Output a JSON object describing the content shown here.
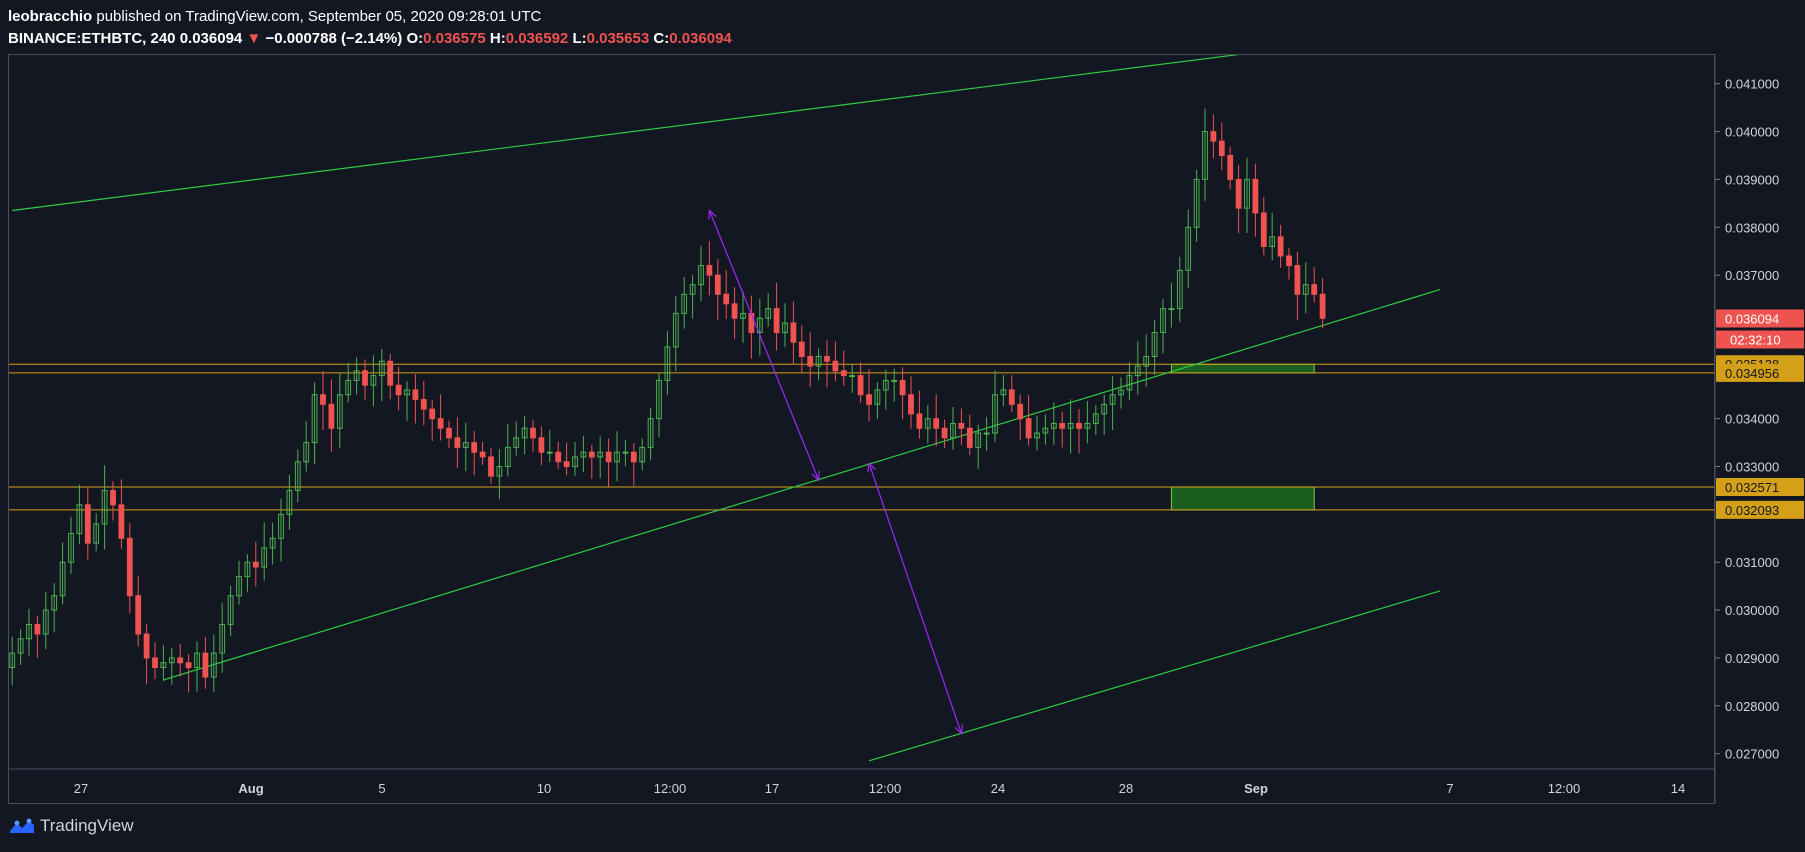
{
  "header": {
    "author": "leobracchio",
    "published_text": "published on TradingView.com, September 05, 2020 09:28:01 UTC",
    "symbol": "BINANCE:ETHBTC, 240",
    "last": "0.036094",
    "change_arrow": "▼",
    "change": "−0.000788 (−2.14%)",
    "o_label": "O:",
    "o_value": "0.036575",
    "h_label": "H:",
    "h_value": "0.036592",
    "l_label": "L:",
    "l_value": "0.035653",
    "c_label": "C:",
    "c_value": "0.036094"
  },
  "footer": {
    "brand": "TradingView",
    "logo_icon": "tradingview-logo-icon"
  },
  "colors": {
    "background": "#131722",
    "up": "#4caf50",
    "down": "#ef5350",
    "trendline": "#2ecc40",
    "support_line": "#d4a017",
    "measure_arrow": "#9c27ff",
    "zone_fill": "#1b5e20"
  },
  "chart_data": {
    "type": "candlestick",
    "symbol": "BINANCE:ETHBTC",
    "interval": "240",
    "ylim": [
      0.0267,
      0.0416
    ],
    "y_ticks": [
      "0.041000",
      "0.040000",
      "0.039000",
      "0.038000",
      "0.037000",
      "0.034000",
      "0.033000",
      "0.031000",
      "0.030000",
      "0.029000",
      "0.028000",
      "0.027000"
    ],
    "x_ticks": [
      "27",
      "Aug",
      "5",
      "10",
      "12:00",
      "17",
      "12:00",
      "24",
      "28",
      "Sep",
      "7",
      "12:00",
      "14"
    ],
    "price_labels": [
      {
        "value": "0.036094",
        "kind": "last"
      },
      {
        "value": "02:32:10",
        "kind": "countdown"
      },
      {
        "value": "0.035138",
        "kind": "level"
      },
      {
        "value": "0.034956",
        "kind": "level"
      },
      {
        "value": "0.032571",
        "kind": "level"
      },
      {
        "value": "0.032093",
        "kind": "level"
      }
    ],
    "horizontal_levels": [
      0.035138,
      0.034956,
      0.032571,
      0.032093
    ],
    "channel_lines": [
      {
        "name": "upper",
        "points": [
          [
            0,
            0.03835
          ],
          [
            150,
            0.0417
          ]
        ]
      },
      {
        "name": "middle",
        "points": [
          [
            18,
            0.02854
          ],
          [
            170,
            0.0367
          ]
        ]
      },
      {
        "name": "lower",
        "points": [
          [
            102,
            0.02685
          ],
          [
            170,
            0.0304
          ]
        ]
      }
    ],
    "zones": [
      {
        "x": [
          138,
          155
        ],
        "y": [
          0.034956,
          0.035138
        ]
      },
      {
        "x": [
          138,
          155
        ],
        "y": [
          0.032093,
          0.032571
        ]
      }
    ],
    "measure_arrows": [
      {
        "from": [
          83,
          0.03835
        ],
        "to": [
          96,
          0.03272
        ]
      },
      {
        "from": [
          102,
          0.03307
        ],
        "to": [
          113,
          0.02742
        ]
      }
    ],
    "closes": [
      0.0291,
      0.0294,
      0.0297,
      0.0295,
      0.03,
      0.0303,
      0.031,
      0.0316,
      0.0322,
      0.0314,
      0.0318,
      0.0325,
      0.0322,
      0.0315,
      0.0303,
      0.0295,
      0.029,
      0.0288,
      0.0289,
      0.029,
      0.0289,
      0.0288,
      0.0291,
      0.0286,
      0.0291,
      0.0297,
      0.0303,
      0.0307,
      0.031,
      0.0309,
      0.0313,
      0.0315,
      0.032,
      0.0325,
      0.0331,
      0.0335,
      0.0345,
      0.0343,
      0.0338,
      0.0345,
      0.0348,
      0.035,
      0.0347,
      0.0349,
      0.0352,
      0.0347,
      0.0345,
      0.0346,
      0.0344,
      0.0342,
      0.034,
      0.0338,
      0.0336,
      0.0334,
      0.0335,
      0.0333,
      0.0332,
      0.0328,
      0.033,
      0.0334,
      0.0336,
      0.0338,
      0.0336,
      0.0333,
      0.0333,
      0.0331,
      0.033,
      0.0332,
      0.0333,
      0.0332,
      0.0333,
      0.0331,
      0.0333,
      0.0333,
      0.0331,
      0.0334,
      0.034,
      0.0348,
      0.0355,
      0.0362,
      0.0366,
      0.0368,
      0.0372,
      0.037,
      0.0366,
      0.0364,
      0.0361,
      0.0362,
      0.0358,
      0.0361,
      0.0363,
      0.0358,
      0.036,
      0.0356,
      0.0353,
      0.0351,
      0.0353,
      0.0352,
      0.035,
      0.0349,
      0.0349,
      0.0345,
      0.0343,
      0.0346,
      0.0348,
      0.0348,
      0.0345,
      0.0341,
      0.0338,
      0.034,
      0.0338,
      0.0336,
      0.0339,
      0.0338,
      0.0334,
      0.0337,
      0.0337,
      0.0345,
      0.0346,
      0.0343,
      0.034,
      0.0336,
      0.0337,
      0.0338,
      0.0339,
      0.0338,
      0.0339,
      0.0338,
      0.0339,
      0.0341,
      0.0343,
      0.0345,
      0.0346,
      0.0349,
      0.0351,
      0.0353,
      0.0358,
      0.0363,
      0.0363,
      0.0371,
      0.038,
      0.039,
      0.04,
      0.0398,
      0.0395,
      0.039,
      0.0384,
      0.039,
      0.0383,
      0.0376,
      0.0378,
      0.0374,
      0.0372,
      0.0366,
      0.0368,
      0.0366,
      0.0361
    ]
  }
}
